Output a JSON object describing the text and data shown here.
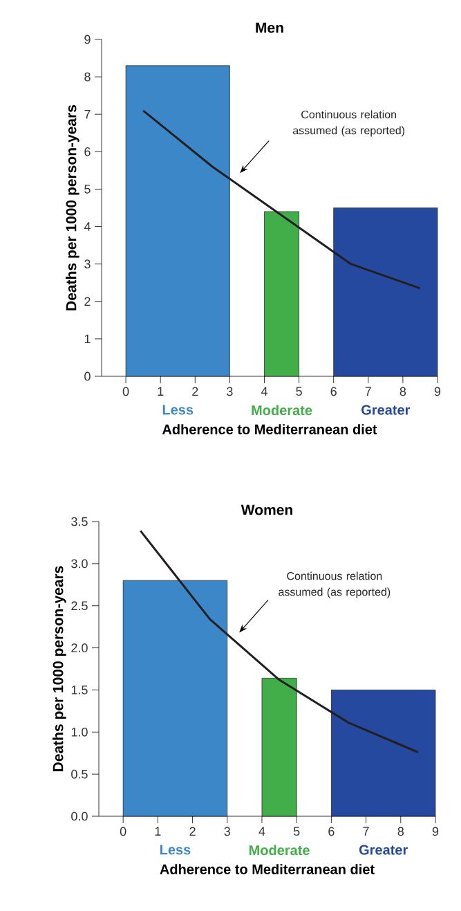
{
  "chart_data": [
    {
      "type": "histogram",
      "title": "Men",
      "xlabel": "Adherence to Mediterranean diet",
      "ylabel": "Deaths per 1000 person-years",
      "xlim": [
        -0.7,
        9
      ],
      "ylim": [
        0,
        9
      ],
      "xticks": [
        0,
        1,
        2,
        3,
        4,
        5,
        6,
        7,
        8,
        9
      ],
      "yticks": [
        0,
        1,
        2,
        3,
        4,
        5,
        6,
        7,
        8,
        9
      ],
      "series": [
        {
          "name": "Less",
          "color": "#3b87c8",
          "bins": [
            0,
            3
          ],
          "values": [
            8.3
          ]
        },
        {
          "name": "Moderate",
          "color": "#42ae4a",
          "bins": [
            4,
            5
          ],
          "values": [
            4.4
          ]
        },
        {
          "name": "Greater",
          "color": "#2649a0",
          "bins": [
            6,
            9
          ],
          "values": [
            4.5
          ]
        },
        {
          "type": "line",
          "color": "#231f20",
          "x": [
            0.5,
            2.5,
            4.5,
            6.5,
            8.5
          ],
          "values": [
            7.1,
            5.6,
            4.3,
            3.0,
            2.35
          ]
        }
      ],
      "annotations": [
        "Continuous relation assumed (as reported)"
      ]
    },
    {
      "type": "histogram",
      "title": "Women",
      "xlabel": "Adherence to Mediterranean diet",
      "ylabel": "Deaths per 1000 person-years",
      "xlim": [
        -0.7,
        9
      ],
      "ylim": [
        0,
        3.5
      ],
      "xticks": [
        0,
        1,
        2,
        3,
        4,
        5,
        6,
        7,
        8,
        9
      ],
      "yticks": [
        {
          "value": 0,
          "label": "0.0"
        },
        {
          "value": 0.5,
          "label": "0.5"
        },
        {
          "value": 1,
          "label": "1.0"
        },
        {
          "value": 1.5,
          "label": "1.5"
        },
        {
          "value": 2,
          "label": "2.0"
        },
        {
          "value": 2.5,
          "label": "2.5"
        },
        {
          "value": 3,
          "label": "3.0"
        },
        {
          "value": 3.5,
          "label": "3.5"
        }
      ],
      "series": [
        {
          "name": "Less",
          "color": "#3b87c8",
          "bins": [
            0,
            3
          ],
          "values": [
            2.8
          ]
        },
        {
          "name": "Moderate",
          "color": "#42ae4a",
          "bins": [
            4,
            5
          ],
          "values": [
            1.64
          ]
        },
        {
          "name": "Greater",
          "color": "#2649a0",
          "bins": [
            6,
            9
          ],
          "values": [
            1.5
          ]
        },
        {
          "type": "line",
          "color": "#231f20",
          "x": [
            0.5,
            2.5,
            4.5,
            6.5,
            8.5
          ],
          "values": [
            3.39,
            2.34,
            1.62,
            1.11,
            0.76
          ]
        }
      ],
      "annotations": [
        "Continuous relation assumed (as reported)"
      ]
    }
  ]
}
